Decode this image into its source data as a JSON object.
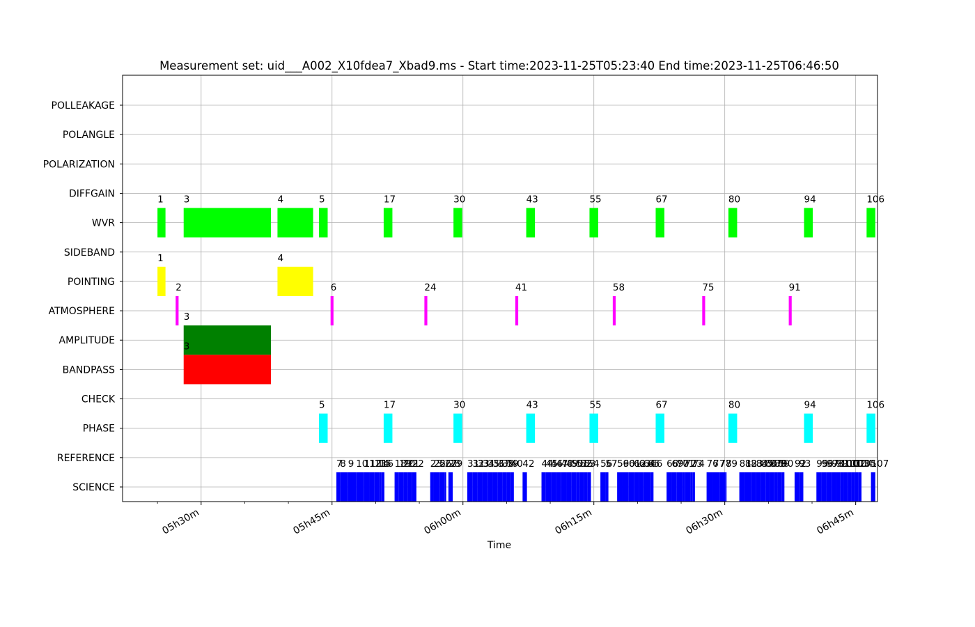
{
  "chart_data": {
    "type": "bar",
    "title": "Measurement set: uid___A002_X10fdea7_Xbad9.ms - Start time:2023-11-25T05:23:40 End time:2023-11-25T06:46:50",
    "xlabel": "Time",
    "ylabel": "",
    "xlim": [
      "05:21:00",
      "06:47:30"
    ],
    "grid": true,
    "x_ticks": [
      {
        "time": "05:30:00",
        "label": "05h30m"
      },
      {
        "time": "05:45:00",
        "label": "05h45m"
      },
      {
        "time": "06:00:00",
        "label": "06h00m"
      },
      {
        "time": "06:15:00",
        "label": "06h15m"
      },
      {
        "time": "06:30:00",
        "label": "06h30m"
      },
      {
        "time": "06:45:00",
        "label": "06h45m"
      }
    ],
    "categories": [
      "SCIENCE",
      "REFERENCE",
      "PHASE",
      "CHECK",
      "BANDPASS",
      "AMPLITUDE",
      "ATMOSPHERE",
      "POINTING",
      "SIDEBAND",
      "WVR",
      "DIFFGAIN",
      "POLARIZATION",
      "POLANGLE",
      "POLLEAKAGE"
    ],
    "series": [
      {
        "category": "WVR",
        "color": "#00ff00",
        "scans": [
          {
            "label": "1",
            "start": "05:25:00",
            "end": "05:25:55"
          },
          {
            "label": "3",
            "start": "05:28:00",
            "end": "05:38:00"
          },
          {
            "label": "4",
            "start": "05:38:45",
            "end": "05:42:50"
          },
          {
            "label": "5",
            "start": "05:43:30",
            "end": "05:44:30"
          },
          {
            "label": "17",
            "start": "05:50:55",
            "end": "05:51:55"
          },
          {
            "label": "30",
            "start": "05:58:55",
            "end": "05:59:55"
          },
          {
            "label": "43",
            "start": "06:07:15",
            "end": "06:08:15"
          },
          {
            "label": "55",
            "start": "06:14:30",
            "end": "06:15:30"
          },
          {
            "label": "67",
            "start": "06:22:05",
            "end": "06:23:05"
          },
          {
            "label": "80",
            "start": "06:30:25",
            "end": "06:31:25"
          },
          {
            "label": "94",
            "start": "06:39:05",
            "end": "06:40:05"
          },
          {
            "label": "106",
            "start": "06:46:15",
            "end": "06:47:15"
          }
        ]
      },
      {
        "category": "POINTING",
        "color": "#ffff00",
        "scans": [
          {
            "label": "1",
            "start": "05:25:00",
            "end": "05:25:55"
          },
          {
            "label": "4",
            "start": "05:38:45",
            "end": "05:42:50"
          }
        ]
      },
      {
        "category": "ATMOSPHERE",
        "color": "#ff00ff",
        "scans": [
          {
            "label": "2",
            "start": "05:27:05",
            "end": "05:27:25"
          },
          {
            "label": "6",
            "start": "05:44:50",
            "end": "05:45:10"
          },
          {
            "label": "24",
            "start": "05:55:35",
            "end": "05:55:55"
          },
          {
            "label": "41",
            "start": "06:06:00",
            "end": "06:06:20"
          },
          {
            "label": "58",
            "start": "06:17:10",
            "end": "06:17:30"
          },
          {
            "label": "75",
            "start": "06:27:25",
            "end": "06:27:45"
          },
          {
            "label": "91",
            "start": "06:37:20",
            "end": "06:37:40"
          }
        ]
      },
      {
        "category": "AMPLITUDE",
        "color": "#008000",
        "scans": [
          {
            "label": "3",
            "start": "05:28:00",
            "end": "05:38:00"
          }
        ]
      },
      {
        "category": "BANDPASS",
        "color": "#ff0000",
        "scans": [
          {
            "label": "3",
            "start": "05:28:00",
            "end": "05:38:00"
          }
        ]
      },
      {
        "category": "PHASE",
        "color": "#00ffff",
        "scans": [
          {
            "label": "5",
            "start": "05:43:30",
            "end": "05:44:30"
          },
          {
            "label": "17",
            "start": "05:50:55",
            "end": "05:51:55"
          },
          {
            "label": "30",
            "start": "05:58:55",
            "end": "05:59:55"
          },
          {
            "label": "43",
            "start": "06:07:15",
            "end": "06:08:15"
          },
          {
            "label": "55",
            "start": "06:14:30",
            "end": "06:15:30"
          },
          {
            "label": "67",
            "start": "06:22:05",
            "end": "06:23:05"
          },
          {
            "label": "80",
            "start": "06:30:25",
            "end": "06:31:25"
          },
          {
            "label": "94",
            "start": "06:39:05",
            "end": "06:40:05"
          },
          {
            "label": "106",
            "start": "06:46:15",
            "end": "06:47:15"
          }
        ]
      },
      {
        "category": "SCIENCE",
        "color": "#0000ff",
        "scans": [
          {
            "label": "7",
            "start": "05:45:30",
            "end": "05:45:55"
          },
          {
            "label": "8",
            "start": "05:45:55",
            "end": "05:46:50"
          },
          {
            "label": "9",
            "start": "05:46:50",
            "end": "05:47:45"
          },
          {
            "label": "10",
            "start": "05:47:45",
            "end": "05:48:40"
          },
          {
            "label": "11",
            "start": "05:48:40",
            "end": "05:49:15"
          },
          {
            "label": "12",
            "start": "05:49:15",
            "end": "05:49:50"
          },
          {
            "label": "13",
            "start": "05:49:50",
            "end": "05:50:10"
          },
          {
            "label": "14",
            "start": "05:50:10",
            "end": "05:50:25"
          },
          {
            "label": "15",
            "start": "05:50:25",
            "end": "05:50:40"
          },
          {
            "label": "16",
            "start": "05:50:40",
            "end": "05:51:00"
          },
          {
            "label": "18",
            "start": "05:52:10",
            "end": "05:52:40"
          },
          {
            "label": "19",
            "start": "05:52:40",
            "end": "05:53:10"
          },
          {
            "label": "20",
            "start": "05:53:10",
            "end": "05:53:40"
          },
          {
            "label": "21",
            "start": "05:53:40",
            "end": "05:54:10"
          },
          {
            "label": "22",
            "start": "05:54:10",
            "end": "05:54:40"
          },
          {
            "label": "23",
            "start": "05:56:15",
            "end": "05:56:40"
          },
          {
            "label": "25",
            "start": "05:56:40",
            "end": "05:57:20"
          },
          {
            "label": "26",
            "start": "05:57:20",
            "end": "05:57:55"
          },
          {
            "label": "27",
            "start": "05:57:55",
            "end": "05:58:05"
          },
          {
            "label": "28",
            "start": "05:58:20",
            "end": "05:58:35"
          },
          {
            "label": "29",
            "start": "05:58:35",
            "end": "05:58:50"
          },
          {
            "label": "31",
            "start": "06:00:30",
            "end": "06:01:05"
          },
          {
            "label": "32",
            "start": "06:01:05",
            "end": "06:01:40"
          },
          {
            "label": "33",
            "start": "06:01:40",
            "end": "06:02:15"
          },
          {
            "label": "34",
            "start": "06:02:15",
            "end": "06:02:50"
          },
          {
            "label": "35",
            "start": "06:02:50",
            "end": "06:03:25"
          },
          {
            "label": "36",
            "start": "06:03:25",
            "end": "06:04:00"
          },
          {
            "label": "37",
            "start": "06:04:00",
            "end": "06:04:30"
          },
          {
            "label": "38",
            "start": "06:04:30",
            "end": "06:05:00"
          },
          {
            "label": "39",
            "start": "06:05:00",
            "end": "06:05:30"
          },
          {
            "label": "40",
            "start": "06:05:30",
            "end": "06:05:50"
          },
          {
            "label": "42",
            "start": "06:06:50",
            "end": "06:07:20"
          },
          {
            "label": "44",
            "start": "06:09:00",
            "end": "06:09:30"
          },
          {
            "label": "45",
            "start": "06:09:30",
            "end": "06:10:05"
          },
          {
            "label": "46",
            "start": "06:10:05",
            "end": "06:10:40"
          },
          {
            "label": "47",
            "start": "06:10:40",
            "end": "06:11:15"
          },
          {
            "label": "48",
            "start": "06:11:15",
            "end": "06:11:50"
          },
          {
            "label": "49",
            "start": "06:11:50",
            "end": "06:12:25"
          },
          {
            "label": "50",
            "start": "06:12:25",
            "end": "06:13:00"
          },
          {
            "label": "51",
            "start": "06:13:00",
            "end": "06:13:25"
          },
          {
            "label": "52",
            "start": "06:13:25",
            "end": "06:13:50"
          },
          {
            "label": "53",
            "start": "06:13:50",
            "end": "06:14:15"
          },
          {
            "label": "54",
            "start": "06:14:15",
            "end": "06:14:40"
          },
          {
            "label": "56",
            "start": "06:15:45",
            "end": "06:16:20"
          },
          {
            "label": "57",
            "start": "06:16:20",
            "end": "06:16:40"
          },
          {
            "label": "59",
            "start": "06:17:40",
            "end": "06:18:20"
          },
          {
            "label": "60",
            "start": "06:18:20",
            "end": "06:19:00"
          },
          {
            "label": "61",
            "start": "06:19:00",
            "end": "06:19:35"
          },
          {
            "label": "62",
            "start": "06:19:35",
            "end": "06:20:10"
          },
          {
            "label": "63",
            "start": "06:20:10",
            "end": "06:20:40"
          },
          {
            "label": "64",
            "start": "06:20:40",
            "end": "06:21:10"
          },
          {
            "label": "65",
            "start": "06:21:10",
            "end": "06:21:30"
          },
          {
            "label": "66",
            "start": "06:21:30",
            "end": "06:21:50"
          },
          {
            "label": "68",
            "start": "06:23:20",
            "end": "06:23:55"
          },
          {
            "label": "69",
            "start": "06:23:55",
            "end": "06:24:30"
          },
          {
            "label": "70",
            "start": "06:24:30",
            "end": "06:25:10"
          },
          {
            "label": "71",
            "start": "06:25:10",
            "end": "06:25:25"
          },
          {
            "label": "72",
            "start": "06:25:25",
            "end": "06:26:05"
          },
          {
            "label": "73",
            "start": "06:26:05",
            "end": "06:26:20"
          },
          {
            "label": "74",
            "start": "06:26:20",
            "end": "06:26:35"
          },
          {
            "label": "76",
            "start": "06:27:55",
            "end": "06:28:40"
          },
          {
            "label": "77",
            "start": "06:28:40",
            "end": "06:29:25"
          },
          {
            "label": "78",
            "start": "06:29:25",
            "end": "06:30:05"
          },
          {
            "label": "79",
            "start": "06:30:05",
            "end": "06:30:10"
          },
          {
            "label": "81",
            "start": "06:31:40",
            "end": "06:32:20"
          },
          {
            "label": "82",
            "start": "06:32:20",
            "end": "06:33:00"
          },
          {
            "label": "83",
            "start": "06:33:00",
            "end": "06:33:35"
          },
          {
            "label": "84",
            "start": "06:33:35",
            "end": "06:34:10"
          },
          {
            "label": "85",
            "start": "06:34:10",
            "end": "06:34:40"
          },
          {
            "label": "86",
            "start": "06:34:40",
            "end": "06:35:10"
          },
          {
            "label": "87",
            "start": "06:35:10",
            "end": "06:35:40"
          },
          {
            "label": "88",
            "start": "06:35:40",
            "end": "06:36:05"
          },
          {
            "label": "89",
            "start": "06:36:05",
            "end": "06:36:30"
          },
          {
            "label": "90",
            "start": "06:36:30",
            "end": "06:36:50"
          },
          {
            "label": "92",
            "start": "06:38:00",
            "end": "06:38:30"
          },
          {
            "label": "93",
            "start": "06:38:30",
            "end": "06:39:00"
          },
          {
            "label": "95",
            "start": "06:40:30",
            "end": "06:41:05"
          },
          {
            "label": "96",
            "start": "06:41:05",
            "end": "06:41:40"
          },
          {
            "label": "97",
            "start": "06:41:40",
            "end": "06:42:15"
          },
          {
            "label": "98",
            "start": "06:42:15",
            "end": "06:42:45"
          },
          {
            "label": "99",
            "start": "06:42:45",
            "end": "06:43:15"
          },
          {
            "label": "100",
            "start": "06:43:15",
            "end": "06:43:40"
          },
          {
            "label": "101",
            "start": "06:43:40",
            "end": "06:44:05"
          },
          {
            "label": "102",
            "start": "06:44:05",
            "end": "06:44:30"
          },
          {
            "label": "103",
            "start": "06:44:30",
            "end": "06:44:55"
          },
          {
            "label": "104",
            "start": "06:44:55",
            "end": "06:45:20"
          },
          {
            "label": "105",
            "start": "06:45:20",
            "end": "06:45:40"
          },
          {
            "label": "107",
            "start": "06:46:45",
            "end": "06:47:15"
          }
        ]
      }
    ]
  }
}
